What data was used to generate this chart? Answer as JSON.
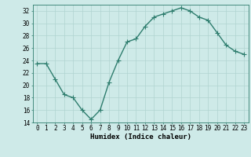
{
  "x": [
    0,
    1,
    2,
    3,
    4,
    5,
    6,
    7,
    8,
    9,
    10,
    11,
    12,
    13,
    14,
    15,
    16,
    17,
    18,
    19,
    20,
    21,
    22,
    23
  ],
  "y": [
    23.5,
    23.5,
    21,
    18.5,
    18,
    16,
    14.5,
    16,
    20.5,
    24,
    27,
    27.5,
    29.5,
    31,
    31.5,
    32,
    32.5,
    32,
    31,
    30.5,
    28.5,
    26.5,
    25.5,
    25
  ],
  "line_color": "#2e7d6e",
  "marker": "+",
  "marker_size": 4,
  "bg_color": "#ceeae8",
  "grid_color": "#b0d4d0",
  "xlabel": "Humidex (Indice chaleur)",
  "ylim": [
    14,
    33
  ],
  "xlim": [
    -0.5,
    23.5
  ],
  "yticks": [
    14,
    16,
    18,
    20,
    22,
    24,
    26,
    28,
    30,
    32
  ],
  "xticks": [
    0,
    1,
    2,
    3,
    4,
    5,
    6,
    7,
    8,
    9,
    10,
    11,
    12,
    13,
    14,
    15,
    16,
    17,
    18,
    19,
    20,
    21,
    22,
    23
  ],
  "tick_fontsize": 5.5,
  "xlabel_fontsize": 6.5,
  "line_width": 1.0
}
